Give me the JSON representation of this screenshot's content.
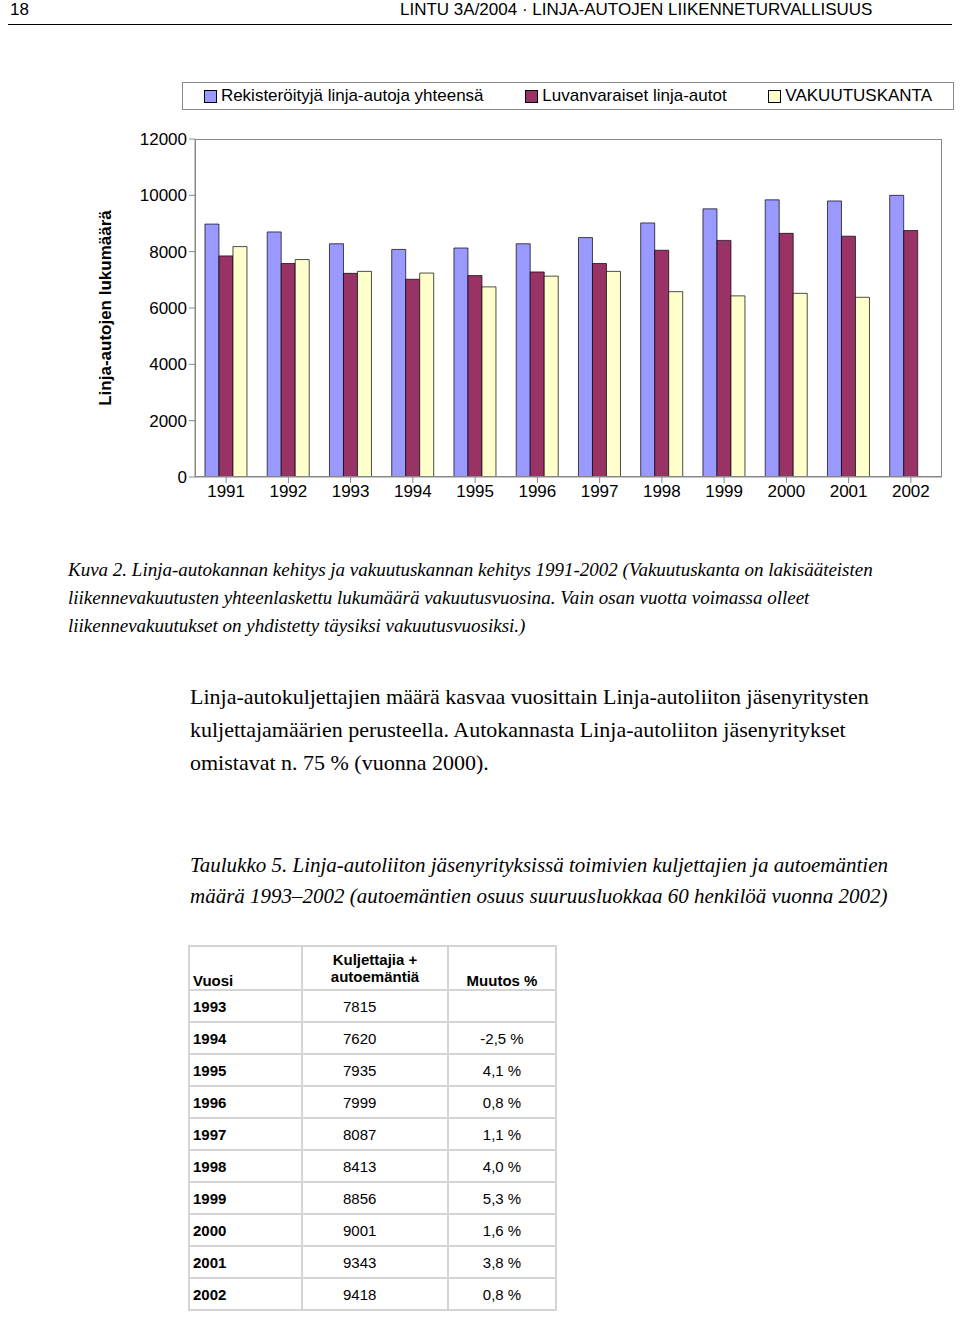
{
  "header": {
    "page": 18,
    "title": "LINTU 3A/2004 · LINJA-AUTOJEN LIIKENNETURVALLISUUS"
  },
  "chart_data": {
    "type": "bar",
    "y_label": "Linja-autojen lukumäärä",
    "categories": [
      1991,
      1992,
      1993,
      1994,
      1995,
      1996,
      1997,
      1998,
      1999,
      2000,
      2001,
      2002
    ],
    "series": [
      {
        "name": "Rekisteröityjä linja-autoja yhteensä",
        "color": "#9999ff",
        "values": [
          8980,
          8700,
          8280,
          8080,
          8130,
          8280,
          8500,
          9020,
          9520,
          9840,
          9800,
          10000
        ]
      },
      {
        "name": "Luvanvaraiset linja-autot",
        "color": "#993366",
        "values": [
          7850,
          7580,
          7230,
          7020,
          7150,
          7280,
          7580,
          8050,
          8400,
          8650,
          8550,
          8750
        ]
      },
      {
        "name": "VAKUUTUSKANTA",
        "color": "#ffffcc",
        "values": [
          8180,
          7720,
          7300,
          7240,
          6750,
          7130,
          7300,
          6580,
          6430,
          6520,
          6380,
          null
        ]
      }
    ],
    "ylim": [
      0,
      12000
    ],
    "yticks": [
      0,
      2000,
      4000,
      6000,
      8000,
      10000,
      12000
    ],
    "grid": false,
    "legend": "top"
  },
  "caption": "Kuva 2. Linja-autokannan kehitys ja vakuutuskannan kehitys 1991-2002 (Vakuutuskanta on lakisääteisten liikennevakuutusten yhteenlaskettu lukumäärä vakuutusvuosina. Vain osan vuotta voimassa olleet liikennevakuutukset on yhdistetty täysiksi vakuutusvuosiksi.)",
  "paragraph": "Linja-autokuljettajien määrä kasvaa vuosittain Linja-autoliiton jäsenyritysten kuljettajamäärien perusteella. Autokannasta Linja-autoliiton jäsenyritykset omistavat n. 75 % (vuonna 2000).",
  "table": {
    "caption_label": "Taulukko 5.",
    "caption": "Linja-autoliiton jäsenyrityksissä toimivien kuljettajien ja autoemäntien määrä 1993–2002 (autoemäntien osuus suuruusluokkaa 60 henkilöä vuonna 2002)",
    "columns": [
      "Vuosi",
      "Kuljettajia + autoemäntiä",
      "Muutos %"
    ],
    "rows": [
      [
        1993,
        7815,
        null
      ],
      [
        1994,
        7620,
        "-2,5 %"
      ],
      [
        1995,
        7935,
        "4,1 %"
      ],
      [
        1996,
        7999,
        "0,8 %"
      ],
      [
        1997,
        8087,
        "1,1 %"
      ],
      [
        1998,
        8413,
        "4,0 %"
      ],
      [
        1999,
        8856,
        "5,3 %"
      ],
      [
        2000,
        9001,
        "1,6 %"
      ],
      [
        2001,
        9343,
        "3,8 %"
      ],
      [
        2002,
        9418,
        "0,8 %"
      ]
    ]
  }
}
